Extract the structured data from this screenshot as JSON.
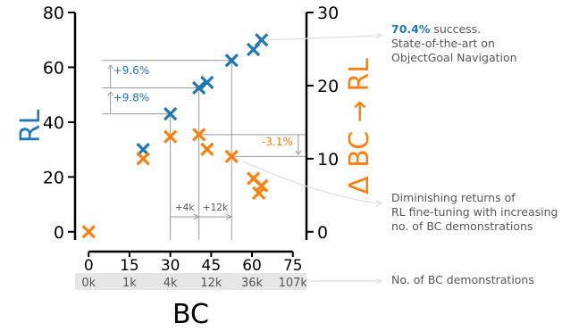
{
  "chart_data": {
    "type": "scatter",
    "title": "",
    "xlabel": "BC",
    "ylabel_left": "RL",
    "ylabel_right": "Δ BC → RL",
    "xlim": [
      -5,
      80
    ],
    "ylim_left": [
      -3,
      80
    ],
    "ylim_right": [
      -1.125,
      30
    ],
    "x_ticks": [
      0,
      15,
      30,
      45,
      60,
      75
    ],
    "y_left_ticks": [
      0,
      20,
      40,
      60,
      80
    ],
    "y_right_ticks": [
      0,
      10,
      20,
      30
    ],
    "bc_demo_labels": [
      "0k",
      "1k",
      "4k",
      "12k",
      "36k",
      "107k"
    ],
    "grid": false,
    "series": [
      {
        "axis": "left",
        "color": "#1f77b4",
        "points": [
          [
            20,
            30
          ],
          [
            30,
            43
          ],
          [
            40.5,
            52.5
          ],
          [
            43.5,
            54.5
          ],
          [
            52.5,
            62.5
          ],
          [
            60.5,
            66.5
          ],
          [
            63.5,
            70
          ]
        ]
      },
      {
        "axis": "right",
        "color": "#ff7f0e",
        "points": [
          [
            0,
            0
          ],
          [
            20,
            10
          ],
          [
            30,
            13
          ],
          [
            40.5,
            13.3
          ],
          [
            43.5,
            11.3
          ],
          [
            52.5,
            10.3
          ],
          [
            60.5,
            7.3
          ],
          [
            63.5,
            6.3
          ],
          [
            62.5,
            5.3
          ]
        ]
      }
    ],
    "annotations": {
      "gain_1": "+9.6%",
      "gain_2": "+9.8%",
      "drop": "-3.1%",
      "demo_gap_1": "+4k",
      "demo_gap_2": "+12k"
    }
  },
  "callouts": {
    "success_value": "70.4%",
    "success_rest": " success.",
    "success_line2": "State-of-the-art on",
    "success_line3": "ObjectGoal Navigation",
    "returns_line1": "Diminishing returns of",
    "returns_line2": "RL fine-tuning with increasing",
    "returns_line3": "no. of BC demonstrations",
    "demos_label": "No. of BC demonstrations"
  },
  "colors": {
    "rl": "#1f77b4",
    "delta": "#ff7f0e",
    "guide": "#999999",
    "demo_band": "#e6e6e6",
    "callout_text": "#555555",
    "callout_line": "#dddddd"
  }
}
